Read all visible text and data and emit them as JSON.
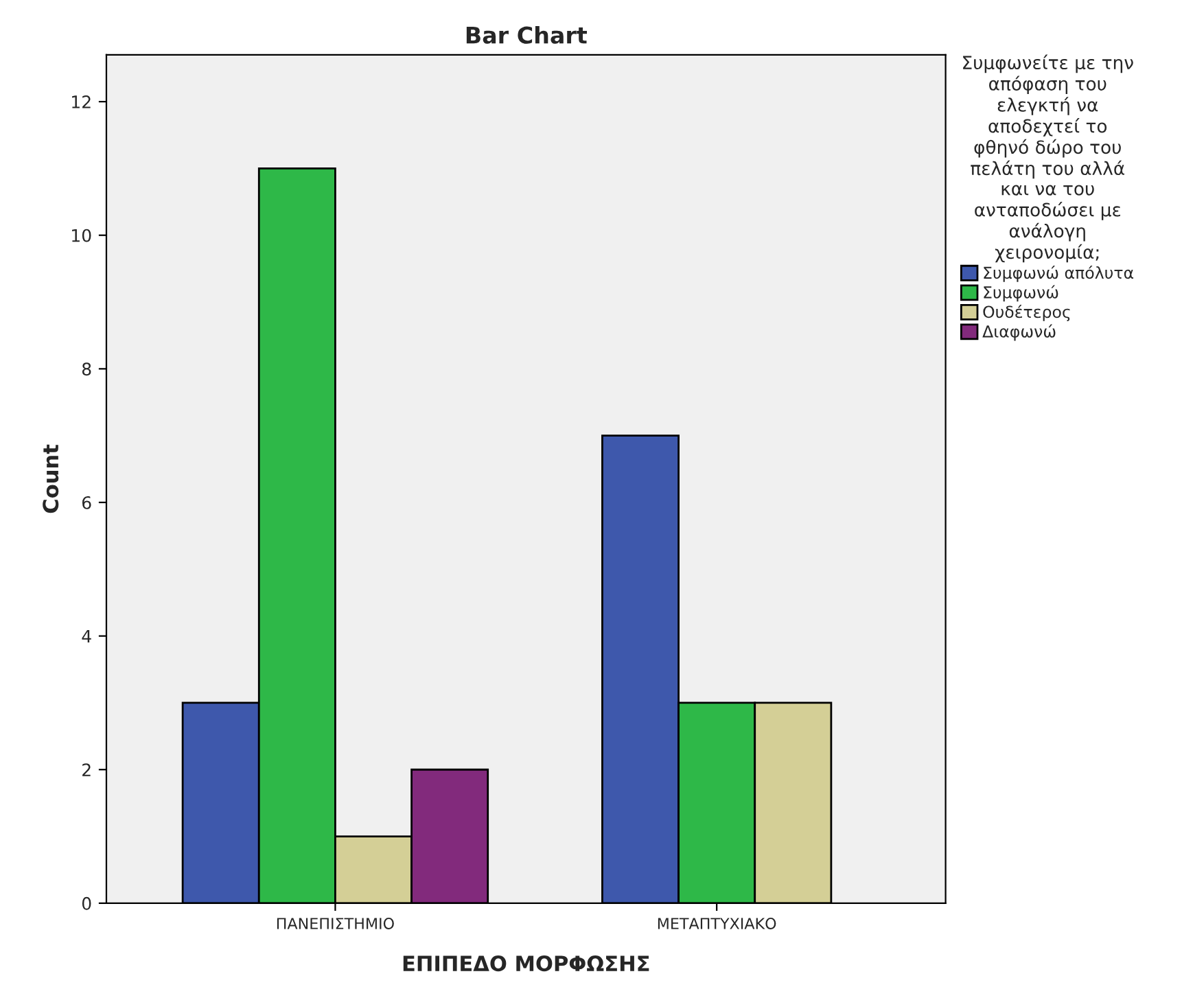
{
  "chart_data": {
    "type": "bar",
    "title": "Bar Chart",
    "xlabel": "ΕΠΙΠΕΔΟ ΜΟΡΦΩΣΗΣ",
    "ylabel": "Count",
    "legend_title": "Συμφωνείτε με την\nαπόφαση του\nελεγκτή να\nαποδεχτεί το\nφθηνό δώρο του\nπελάτη του αλλά\nκαι να του\nανταποδώσει με\nανάλογη\nχειρονομία;",
    "categories": [
      "ΠΑΝΕΠΙΣΤΗΜΙΟ",
      "ΜΕΤΑΠΤΥΧΙΑΚΟ"
    ],
    "series": [
      {
        "name": "Συμφωνώ απόλυτα",
        "color": "#3e58ac",
        "values": [
          3,
          7
        ]
      },
      {
        "name": "Συμφωνώ",
        "color": "#2eb848",
        "values": [
          11,
          3
        ]
      },
      {
        "name": "Ουδέτερος",
        "color": "#d4cf96",
        "values": [
          1,
          3
        ]
      },
      {
        "name": "Διαφωνώ",
        "color": "#822a7c",
        "values": [
          2,
          null
        ]
      }
    ],
    "ylim": [
      0,
      12.7
    ],
    "yticks": [
      0,
      2,
      4,
      6,
      8,
      10,
      12
    ],
    "grid": false,
    "legend": "right"
  }
}
